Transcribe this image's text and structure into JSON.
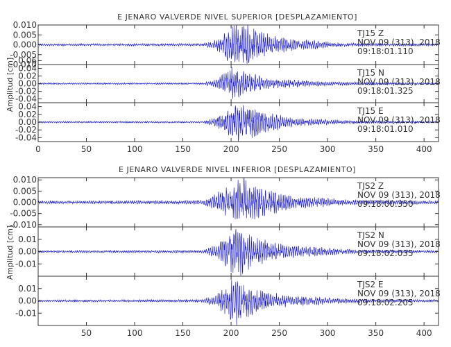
{
  "chart_data": [
    {
      "type": "line",
      "title": "E JENARO VALVERDE NIVEL SUPERIOR [DESPLAZAMIENTO]",
      "ylabel": "Amplitud [cm]",
      "xlabel": "",
      "xlim": [
        0,
        415
      ],
      "x_ticks": [
        "0",
        "50",
        "100",
        "150",
        "200",
        "250",
        "300",
        "350",
        "400"
      ],
      "grid": false,
      "series_color": "#2222dd",
      "panels": [
        {
          "station": "TJ15",
          "component": "Z",
          "date": "NOV 09 (313), 2018",
          "time": "09:18:01.110",
          "ylim": [
            -0.01,
            0.01
          ],
          "y_ticks": [
            "0.010",
            "0.005",
            "0.000",
            "-0.005",
            "-0.010"
          ],
          "envelope": [
            [
              0,
              0.0005
            ],
            [
              170,
              0.0006
            ],
            [
              185,
              0.0025
            ],
            [
              195,
              0.007
            ],
            [
              210,
              0.012
            ],
            [
              230,
              0.006
            ],
            [
              260,
              0.003
            ],
            [
              320,
              0.0008
            ],
            [
              415,
              0.0005
            ]
          ]
        },
        {
          "station": "TJ15",
          "component": "N",
          "date": "NOV 09 (313), 2018",
          "time": "09:18:01.325",
          "ylim": [
            -0.05,
            0.05
          ],
          "y_ticks": [
            "0.06",
            "0.04",
            "0.02",
            "0.00",
            "-0.02",
            "-0.04"
          ],
          "envelope": [
            [
              0,
              0.002
            ],
            [
              170,
              0.002
            ],
            [
              185,
              0.01
            ],
            [
              200,
              0.04
            ],
            [
              215,
              0.03
            ],
            [
              240,
              0.012
            ],
            [
              300,
              0.005
            ],
            [
              415,
              0.002
            ]
          ]
        },
        {
          "station": "TJ15",
          "component": "E",
          "date": "NOV 09 (313), 2018",
          "time": "09:18:01.010",
          "ylim": [
            -0.05,
            0.05
          ],
          "y_ticks": [
            "0.04",
            "0.02",
            "0.00",
            "-0.02",
            "-0.04"
          ],
          "envelope": [
            [
              0,
              0.002
            ],
            [
              170,
              0.002
            ],
            [
              185,
              0.012
            ],
            [
              208,
              0.05
            ],
            [
              230,
              0.03
            ],
            [
              260,
              0.012
            ],
            [
              320,
              0.004
            ],
            [
              415,
              0.002
            ]
          ]
        }
      ]
    },
    {
      "type": "line",
      "title": "E JENARO VALVERDE NIVEL INFERIOR [DESPLAZAMIENTO]",
      "ylabel": "Amplitud [cm]",
      "xlabel": "",
      "xlim": [
        0,
        415
      ],
      "x_ticks": [
        "50",
        "100",
        "150",
        "200",
        "250",
        "300",
        "350",
        "400"
      ],
      "grid": false,
      "series_color": "#2222dd",
      "panels": [
        {
          "station": "TJS2",
          "component": "Z",
          "date": "NOV 09 (313), 2018",
          "time": "09:18:00.350",
          "ylim": [
            -0.011,
            0.011
          ],
          "y_ticks": [
            "0.010",
            "0.005",
            "0.000",
            "-0.005",
            "-0.010"
          ],
          "envelope": [
            [
              0,
              0.0006
            ],
            [
              170,
              0.0008
            ],
            [
              185,
              0.004
            ],
            [
              200,
              0.007
            ],
            [
              212,
              0.011
            ],
            [
              230,
              0.006
            ],
            [
              260,
              0.003
            ],
            [
              320,
              0.0012
            ],
            [
              415,
              0.0007
            ]
          ]
        },
        {
          "station": "TJS2",
          "component": "N",
          "date": "NOV 09 (313), 2018",
          "time": "09:18:02.035",
          "ylim": [
            -0.02,
            0.02
          ],
          "y_ticks": [
            "0.01",
            "0.00",
            "-0.01"
          ],
          "envelope": [
            [
              0,
              0.0008
            ],
            [
              170,
              0.001
            ],
            [
              185,
              0.006
            ],
            [
              205,
              0.02
            ],
            [
              225,
              0.01
            ],
            [
              260,
              0.005
            ],
            [
              330,
              0.0015
            ],
            [
              415,
              0.0009
            ]
          ]
        },
        {
          "station": "TJS2",
          "component": "E",
          "date": "NOV 09 (313), 2018",
          "time": "09:18:02.205",
          "ylim": [
            -0.02,
            0.02
          ],
          "y_ticks": [
            "0.01",
            "0.00",
            "-0.01"
          ],
          "envelope": [
            [
              0,
              0.0008
            ],
            [
              170,
              0.001
            ],
            [
              185,
              0.005
            ],
            [
              205,
              0.02
            ],
            [
              225,
              0.009
            ],
            [
              260,
              0.004
            ],
            [
              330,
              0.0015
            ],
            [
              415,
              0.0009
            ]
          ]
        }
      ]
    }
  ]
}
